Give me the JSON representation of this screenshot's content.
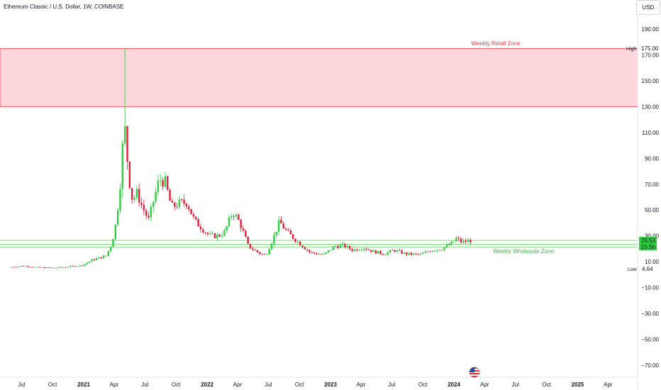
{
  "header": {
    "title": "Ethereum Classic / U.S. Dollar, 1W, COINBASE",
    "currency": "USD"
  },
  "chart_data": {
    "type": "candlestick",
    "title": "Ethereum Classic / U.S. Dollar, 1W, COINBASE",
    "ylim": [
      -75,
      195
    ],
    "y_ticks": [
      190,
      170,
      150,
      130,
      110,
      90,
      70,
      50,
      30,
      10,
      -10,
      -30,
      -50,
      -70
    ],
    "x_ticks": [
      {
        "label": "Jul",
        "date": "2020-07-01",
        "bold": false
      },
      {
        "label": "Oct",
        "date": "2020-10-01",
        "bold": false
      },
      {
        "label": "2021",
        "date": "2021-01-01",
        "bold": true
      },
      {
        "label": "Apr",
        "date": "2021-04-01",
        "bold": false
      },
      {
        "label": "Jul",
        "date": "2021-07-01",
        "bold": false
      },
      {
        "label": "Oct",
        "date": "2021-10-01",
        "bold": false
      },
      {
        "label": "2022",
        "date": "2022-01-01",
        "bold": true
      },
      {
        "label": "Apr",
        "date": "2022-04-01",
        "bold": false
      },
      {
        "label": "Jul",
        "date": "2022-07-01",
        "bold": false
      },
      {
        "label": "Oct",
        "date": "2022-10-01",
        "bold": false
      },
      {
        "label": "2023",
        "date": "2023-01-01",
        "bold": true
      },
      {
        "label": "Apr",
        "date": "2023-04-01",
        "bold": false
      },
      {
        "label": "Jul",
        "date": "2023-07-01",
        "bold": false
      },
      {
        "label": "Oct",
        "date": "2023-10-01",
        "bold": false
      },
      {
        "label": "2024",
        "date": "2024-01-01",
        "bold": true
      },
      {
        "label": "Apr",
        "date": "2024-04-01",
        "bold": false
      },
      {
        "label": "Jul",
        "date": "2024-07-01",
        "bold": false
      },
      {
        "label": "Oct",
        "date": "2024-10-01",
        "bold": false
      },
      {
        "label": "2025",
        "date": "2025-01-01",
        "bold": true
      },
      {
        "label": "Apr",
        "date": "2025-04-01",
        "bold": false
      }
    ],
    "price_labels": {
      "high": {
        "label": "High",
        "value": "175.00"
      },
      "low": {
        "label": "Low",
        "value": "4.64"
      },
      "last": {
        "value": "26.53"
      },
      "zone_line": {
        "value": "25.5h"
      }
    },
    "zones": [
      {
        "name": "Weekly Retail Zone",
        "from": 130,
        "to": 175,
        "color": "#f23645"
      },
      {
        "name": "Weekly Wholesale Zone",
        "lines": [
          21.5,
          23.5,
          26.5
        ],
        "color": "#4caf50"
      }
    ],
    "up_color": "#2ecc40",
    "down_color": "#e0203a",
    "anchors": [
      {
        "date": "2020-06-01",
        "price": 5.9
      },
      {
        "date": "2020-07-15",
        "price": 6.7
      },
      {
        "date": "2020-09-01",
        "price": 5.5
      },
      {
        "date": "2020-10-15",
        "price": 5.2
      },
      {
        "date": "2020-12-01",
        "price": 6.4
      },
      {
        "date": "2021-01-01",
        "price": 7.0
      },
      {
        "date": "2021-01-15",
        "price": 8.8
      },
      {
        "date": "2021-02-01",
        "price": 11.2
      },
      {
        "date": "2021-02-20",
        "price": 12.8
      },
      {
        "date": "2021-03-15",
        "price": 14.5
      },
      {
        "date": "2021-04-01",
        "price": 24.0
      },
      {
        "date": "2021-04-15",
        "price": 42.0
      },
      {
        "date": "2021-05-01",
        "price": 85.0
      },
      {
        "date": "2021-05-06",
        "price": 118.0
      },
      {
        "date": "2021-05-12",
        "price": 108.0
      },
      {
        "date": "2021-05-20",
        "price": 78.0
      },
      {
        "date": "2021-06-01",
        "price": 58.0
      },
      {
        "date": "2021-06-15",
        "price": 63.0
      },
      {
        "date": "2021-07-01",
        "price": 52.0
      },
      {
        "date": "2021-07-20",
        "price": 42.0
      },
      {
        "date": "2021-08-01",
        "price": 56.0
      },
      {
        "date": "2021-08-20",
        "price": 74.0
      },
      {
        "date": "2021-09-05",
        "price": 72.0
      },
      {
        "date": "2021-09-25",
        "price": 52.0
      },
      {
        "date": "2021-10-15",
        "price": 55.0
      },
      {
        "date": "2021-11-10",
        "price": 56.0
      },
      {
        "date": "2021-12-01",
        "price": 42.0
      },
      {
        "date": "2021-12-20",
        "price": 37.0
      },
      {
        "date": "2022-01-15",
        "price": 30.0
      },
      {
        "date": "2022-02-10",
        "price": 30.0
      },
      {
        "date": "2022-03-01",
        "price": 33.0
      },
      {
        "date": "2022-03-25",
        "price": 49.0
      },
      {
        "date": "2022-04-15",
        "price": 40.0
      },
      {
        "date": "2022-05-10",
        "price": 22.0
      },
      {
        "date": "2022-06-15",
        "price": 16.0
      },
      {
        "date": "2022-07-01",
        "price": 15.0
      },
      {
        "date": "2022-07-25",
        "price": 30.0
      },
      {
        "date": "2022-08-10",
        "price": 41.0
      },
      {
        "date": "2022-09-01",
        "price": 33.0
      },
      {
        "date": "2022-10-01",
        "price": 26.0
      },
      {
        "date": "2022-11-10",
        "price": 17.0
      },
      {
        "date": "2022-12-20",
        "price": 15.5
      },
      {
        "date": "2023-01-20",
        "price": 22.0
      },
      {
        "date": "2023-02-15",
        "price": 22.5
      },
      {
        "date": "2023-03-15",
        "price": 19.0
      },
      {
        "date": "2023-04-15",
        "price": 21.0
      },
      {
        "date": "2023-05-15",
        "price": 18.0
      },
      {
        "date": "2023-06-15",
        "price": 16.0
      },
      {
        "date": "2023-07-15",
        "price": 19.0
      },
      {
        "date": "2023-08-20",
        "price": 16.0
      },
      {
        "date": "2023-10-01",
        "price": 15.5
      },
      {
        "date": "2023-11-01",
        "price": 19.0
      },
      {
        "date": "2023-12-01",
        "price": 20.0
      },
      {
        "date": "2024-01-01",
        "price": 24.0
      },
      {
        "date": "2024-01-15",
        "price": 28.0
      },
      {
        "date": "2024-02-01",
        "price": 25.0
      },
      {
        "date": "2024-02-25",
        "price": 26.53
      }
    ],
    "high_candle": {
      "date": "2021-05-03",
      "high": 175.0
    }
  }
}
